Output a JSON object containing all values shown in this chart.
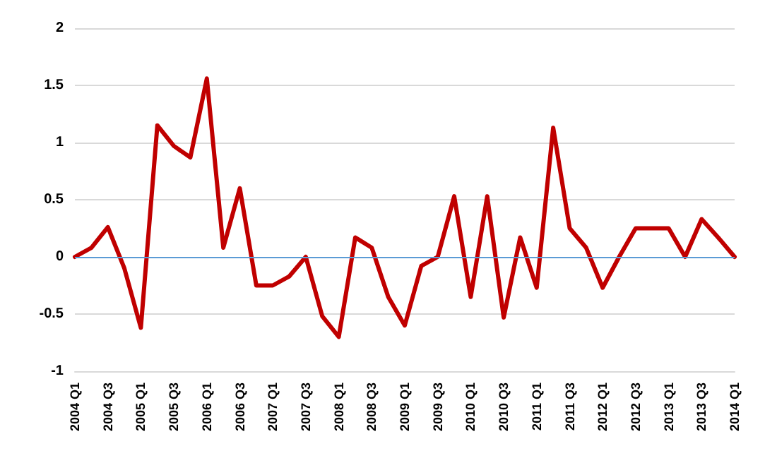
{
  "chart_data": {
    "type": "line",
    "categories": [
      "2004 Q1",
      null,
      "2004 Q3",
      null,
      "2005 Q1",
      null,
      "2005 Q3",
      null,
      "2006 Q1",
      null,
      "2006 Q3",
      null,
      "2007 Q1",
      null,
      "2007 Q3",
      null,
      "2008 Q1",
      null,
      "2008 Q3",
      null,
      "2009 Q1",
      null,
      "2009 Q3",
      null,
      "2010 Q1",
      null,
      "2010 Q3",
      null,
      "2011 Q1",
      null,
      "2011 Q3",
      null,
      "2012 Q1",
      null,
      "2012 Q3",
      null,
      "2013 Q1",
      null,
      "2013 Q3",
      null,
      "2014 Q1"
    ],
    "series": [
      {
        "color": "#c00000",
        "values": [
          0,
          0.08,
          0.26,
          -0.1,
          -0.62,
          1.15,
          0.97,
          0.87,
          1.56,
          0.08,
          0.6,
          -0.25,
          -0.25,
          -0.17,
          0,
          -0.52,
          -0.7,
          0.17,
          0.08,
          -0.35,
          -0.6,
          -0.08,
          0,
          0.53,
          -0.35,
          0.53,
          -0.53,
          0.17,
          -0.27,
          1.13,
          0.25,
          0.08,
          -0.27,
          0,
          0.25,
          0.25,
          0.25,
          0,
          0.33,
          0.17,
          0
        ]
      }
    ],
    "ylim": [
      -1,
      2
    ],
    "yticks": [
      -1,
      -0.5,
      0,
      0.5,
      1,
      1.5,
      2
    ],
    "ref_lines": [
      {
        "axis": "y",
        "value": 0,
        "color": "#5b9bd5"
      }
    ],
    "grid": "y",
    "marker": "none",
    "line_style": "solid"
  }
}
